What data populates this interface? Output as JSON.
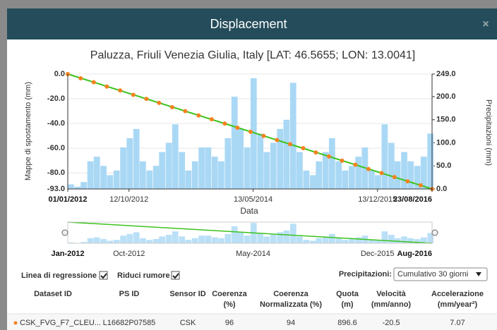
{
  "header": {
    "title": "Displacement",
    "close": "×"
  },
  "chart_data": {
    "type": "line",
    "title": "Paluzza, Friuli Venezia Giulia, Italy [LAT: 46.5655; LON: 13.0041]",
    "x_label": "Data",
    "y_label": "Mappe di spostamento (mm)",
    "y2_label": "Precipitazioni (mm)",
    "xlim": [
      "2012-01-01",
      "2016-08-23"
    ],
    "xticks": [
      {
        "value": "2012-01-01",
        "label": "01/01/2012"
      },
      {
        "value": "2012-10-12",
        "label": "12/10/2012"
      },
      {
        "value": "2014-05-13",
        "label": "13/05/2014"
      },
      {
        "value": "2015-12-13",
        "label": "13/12/2015"
      },
      {
        "value": "2016-08-23",
        "label": "23/08/2016"
      }
    ],
    "ylim": [
      -93,
      0
    ],
    "yticks": [
      {
        "value": 0,
        "label": "0.0"
      },
      {
        "value": -20,
        "label": "-20.0"
      },
      {
        "value": -40,
        "label": "-40.0"
      },
      {
        "value": -60,
        "label": "-60.0"
      },
      {
        "value": -80,
        "label": "-80.0"
      },
      {
        "value": -93,
        "label": "-93.0"
      }
    ],
    "y2lim": [
      0,
      249
    ],
    "y2ticks": [
      {
        "value": 249,
        "label": "249.0"
      },
      {
        "value": 200,
        "label": "200.0"
      },
      {
        "value": 150,
        "label": "150.0"
      },
      {
        "value": 100,
        "label": "100.0"
      },
      {
        "value": 50,
        "label": "50.0"
      },
      {
        "value": 0,
        "label": "0.0"
      }
    ],
    "series": [
      {
        "type": "bar",
        "axis": "y2",
        "color": "#a9d8f5",
        "x": [
          "2012-01",
          "2012-02",
          "2012-03",
          "2012-04",
          "2012-05",
          "2012-06",
          "2012-07",
          "2012-08",
          "2012-09",
          "2012-10",
          "2012-11",
          "2012-12",
          "2013-01",
          "2013-02",
          "2013-03",
          "2013-04",
          "2013-05",
          "2013-06",
          "2013-07",
          "2013-08",
          "2013-09",
          "2013-10",
          "2013-11",
          "2013-12",
          "2014-01",
          "2014-02",
          "2014-03",
          "2014-04",
          "2014-05",
          "2014-06",
          "2014-07",
          "2014-08",
          "2014-09",
          "2014-10",
          "2014-11",
          "2014-12",
          "2015-01",
          "2015-02",
          "2015-03",
          "2015-04",
          "2015-05",
          "2015-06",
          "2015-07",
          "2015-08",
          "2015-09",
          "2015-10",
          "2015-11",
          "2015-12",
          "2016-01",
          "2016-02",
          "2016-03",
          "2016-04",
          "2016-05",
          "2016-06",
          "2016-07",
          "2016-08"
        ],
        "values": [
          10,
          5,
          15,
          60,
          70,
          50,
          30,
          40,
          90,
          110,
          130,
          60,
          40,
          50,
          80,
          100,
          140,
          80,
          40,
          60,
          90,
          90,
          70,
          60,
          110,
          200,
          130,
          90,
          240,
          120,
          80,
          100,
          130,
          150,
          230,
          80,
          40,
          30,
          60,
          80,
          110,
          60,
          40,
          50,
          70,
          90,
          40,
          30,
          140,
          100,
          60,
          80,
          60,
          50,
          70,
          120
        ]
      },
      {
        "type": "line",
        "color": "#3cc31c",
        "x": [
          "2012-01-01",
          "2016-08-23"
        ],
        "values": [
          0,
          -93
        ]
      },
      {
        "type": "scatter",
        "color": "#f5821f",
        "x": [
          "2012-01-01",
          "2012-03-01",
          "2012-05-01",
          "2012-07-01",
          "2012-09-01",
          "2012-11-01",
          "2013-01-01",
          "2013-03-01",
          "2013-05-01",
          "2013-07-01",
          "2013-09-01",
          "2013-11-01",
          "2014-01-01",
          "2014-03-01",
          "2014-05-01",
          "2014-07-01",
          "2014-09-01",
          "2014-11-01",
          "2015-01-01",
          "2015-03-01",
          "2015-05-01",
          "2015-07-01",
          "2015-09-01",
          "2015-11-01",
          "2016-01-01",
          "2016-03-01",
          "2016-05-01",
          "2016-07-01",
          "2016-08-23"
        ],
        "values": [
          0,
          -3.4,
          -6.6,
          -10.1,
          -13.3,
          -16.8,
          -20.1,
          -23.3,
          -26.8,
          -30.0,
          -33.5,
          -36.6,
          -40.1,
          -43.4,
          -46.7,
          -50.1,
          -53.4,
          -56.8,
          -60.0,
          -63.5,
          -66.7,
          -70.1,
          -73.4,
          -76.9,
          -80.1,
          -83.4,
          -86.8,
          -90.0,
          -93.0
        ]
      }
    ]
  },
  "navigator": {
    "labels": [
      {
        "value": "2012-01-01",
        "label": "Jan-2012"
      },
      {
        "value": "2012-10-12",
        "label": "Oct-2012"
      },
      {
        "value": "2014-05-13",
        "label": "May-2014"
      },
      {
        "value": "2015-12-13",
        "label": "Dec-2015"
      },
      {
        "value": "2016-08-23",
        "label": "Aug-2016"
      }
    ]
  },
  "controls": {
    "regression": "Linea di regressione",
    "denoise": "Riduci rumore",
    "precip_label": "Precipitazioni:",
    "precip_select": "Cumulativo 30 giorni"
  },
  "table": {
    "headers": [
      [
        "Dataset ID"
      ],
      [
        "PS ID"
      ],
      [
        "Sensor ID"
      ],
      [
        "Coerenza",
        "(%)"
      ],
      [
        "Coerenza",
        "Normalizzata (%)"
      ],
      [
        "Quota",
        "(m)"
      ],
      [
        "Velocità",
        "(mm/anno)"
      ],
      [
        "Accelerazione",
        "(mm/year²)"
      ]
    ],
    "rows": [
      [
        "CSK_FVG_F7_CLEU...",
        "L16682P07585",
        "CSK",
        96,
        94,
        896.6,
        -20.5,
        7.07
      ]
    ]
  }
}
